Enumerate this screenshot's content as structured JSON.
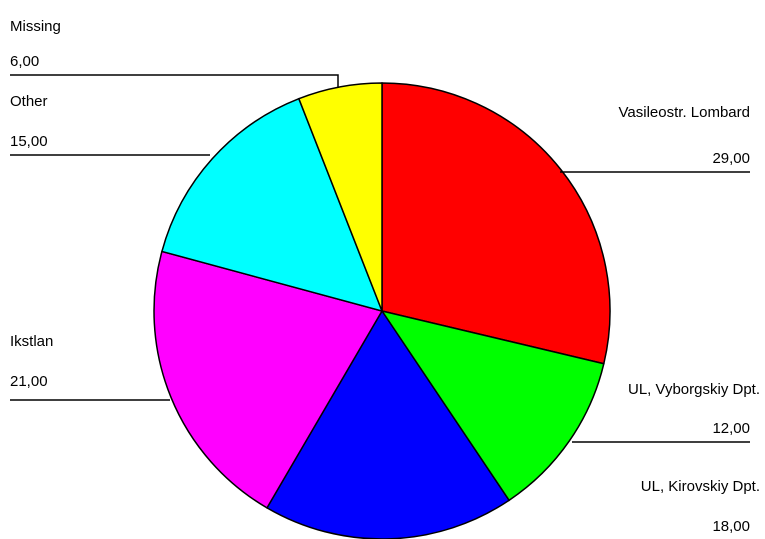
{
  "chart_data": {
    "type": "pie",
    "categories": [
      "Vasileostr. Lombard",
      "UL, Vyborgskiy Dpt.",
      "UL, Kirovskiy Dpt.",
      "Ikstlan",
      "Other",
      "Missing"
    ],
    "values": [
      29,
      12,
      18,
      21,
      15,
      6
    ],
    "value_labels": [
      "29,00",
      "12,00",
      "18,00",
      "21,00",
      "15,00",
      "6,00"
    ],
    "colors": [
      "#ff0000",
      "#00ff00",
      "#0000ff",
      "#ff00ff",
      "#00ffff",
      "#ffff00"
    ]
  }
}
